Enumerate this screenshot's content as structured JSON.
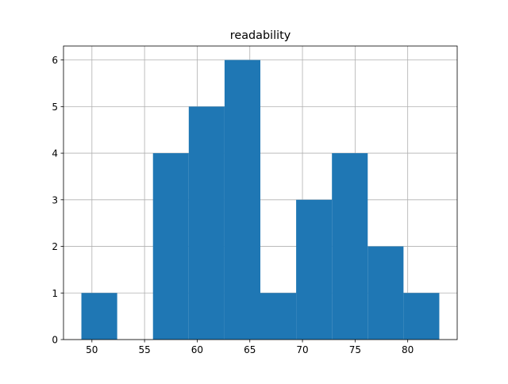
{
  "chart_data": {
    "type": "bar",
    "title": "readability",
    "xlabel": "",
    "ylabel": "",
    "xlim": [
      47.3,
      84.7
    ],
    "ylim": [
      0,
      6.3
    ],
    "grid": true,
    "bar_color": "#1f77b4",
    "grid_color": "#b0b0b0",
    "x_ticks": [
      50,
      55,
      60,
      65,
      70,
      75,
      80
    ],
    "y_ticks": [
      0,
      1,
      2,
      3,
      4,
      5,
      6
    ],
    "bins": [
      {
        "x0": 49.0,
        "x1": 52.4,
        "count": 1
      },
      {
        "x0": 52.4,
        "x1": 55.8,
        "count": 0
      },
      {
        "x0": 55.8,
        "x1": 59.2,
        "count": 4
      },
      {
        "x0": 59.2,
        "x1": 62.6,
        "count": 5
      },
      {
        "x0": 62.6,
        "x1": 66.0,
        "count": 6
      },
      {
        "x0": 66.0,
        "x1": 69.4,
        "count": 1
      },
      {
        "x0": 69.4,
        "x1": 72.8,
        "count": 3
      },
      {
        "x0": 72.8,
        "x1": 76.2,
        "count": 4
      },
      {
        "x0": 76.2,
        "x1": 79.6,
        "count": 2
      },
      {
        "x0": 79.6,
        "x1": 83.0,
        "count": 1
      }
    ]
  }
}
